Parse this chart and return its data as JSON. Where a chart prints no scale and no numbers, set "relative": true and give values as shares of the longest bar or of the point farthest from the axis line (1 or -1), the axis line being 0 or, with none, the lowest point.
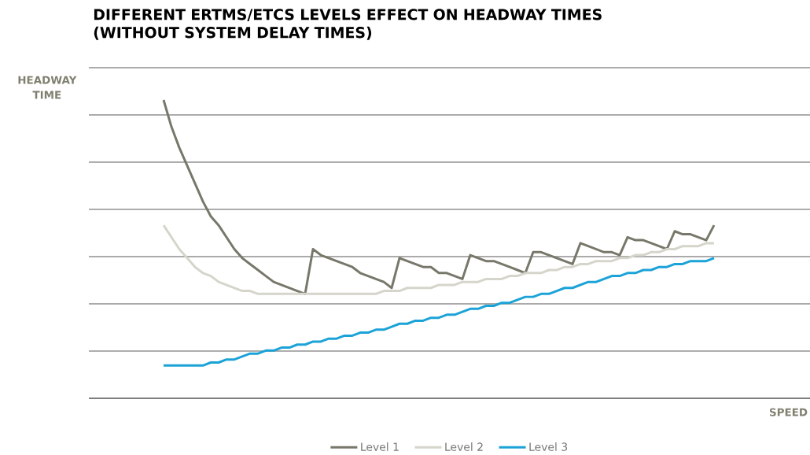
{
  "chart_data": {
    "type": "line",
    "title": "DIFFERENT ERTMS/ETCS LEVELS EFFECT ON HEADWAY TIMES (WITHOUT SYSTEM DELAY TIMES)",
    "xlabel": "SPEED",
    "annotations": [
      "HEADWAY TIME"
    ],
    "relative": true,
    "grid": "y",
    "legend": "bottom",
    "marker": "none",
    "categories": [
      null,
      null,
      null,
      null,
      null,
      null,
      null,
      null,
      null,
      null,
      null,
      null,
      null,
      null,
      null,
      null,
      null,
      null,
      null,
      null,
      null,
      null,
      null,
      null,
      null,
      null,
      null,
      null,
      null,
      null,
      null,
      null,
      null,
      null,
      null,
      null,
      null,
      null,
      null,
      null,
      null,
      null,
      null,
      null,
      null,
      null,
      null,
      null,
      null,
      null,
      null,
      null,
      null,
      null,
      null,
      null,
      null,
      null,
      null,
      null,
      null,
      null,
      null,
      null,
      null,
      null,
      null,
      null,
      null,
      null,
      null
    ],
    "series": [
      {
        "name": "Level 1",
        "color": "#77776a",
        "values": [
          1.0,
          0.91,
          0.84,
          0.78,
          0.72,
          0.66,
          0.61,
          0.58,
          0.54,
          0.5,
          0.47,
          0.45,
          0.43,
          0.41,
          0.39,
          0.38,
          0.37,
          0.36,
          0.35,
          0.5,
          0.48,
          0.47,
          0.46,
          0.45,
          0.44,
          0.42,
          0.41,
          0.4,
          0.39,
          0.37,
          0.47,
          0.46,
          0.45,
          0.44,
          0.44,
          0.42,
          0.42,
          0.41,
          0.4,
          0.48,
          0.47,
          0.46,
          0.46,
          0.45,
          0.44,
          0.43,
          0.42,
          0.49,
          0.49,
          0.48,
          0.47,
          0.46,
          0.45,
          0.52,
          0.51,
          0.5,
          0.49,
          0.49,
          0.48,
          0.54,
          0.53,
          0.53,
          0.52,
          0.51,
          0.5,
          0.56,
          0.55,
          0.55,
          0.54,
          0.53,
          0.58
        ]
      },
      {
        "name": "Level 2",
        "color": "#d5d5cb",
        "values": [
          0.58,
          0.54,
          0.5,
          0.47,
          0.44,
          0.42,
          0.41,
          0.39,
          0.38,
          0.37,
          0.36,
          0.36,
          0.35,
          0.35,
          0.35,
          0.35,
          0.35,
          0.35,
          0.35,
          0.35,
          0.35,
          0.35,
          0.35,
          0.35,
          0.35,
          0.35,
          0.35,
          0.35,
          0.36,
          0.36,
          0.36,
          0.37,
          0.37,
          0.37,
          0.37,
          0.38,
          0.38,
          0.38,
          0.39,
          0.39,
          0.39,
          0.4,
          0.4,
          0.4,
          0.41,
          0.41,
          0.42,
          0.42,
          0.42,
          0.43,
          0.43,
          0.44,
          0.44,
          0.45,
          0.45,
          0.46,
          0.46,
          0.46,
          0.47,
          0.47,
          0.48,
          0.48,
          0.49,
          0.49,
          0.5,
          0.5,
          0.51,
          0.51,
          0.51,
          0.52,
          0.52
        ]
      },
      {
        "name": "Level 3",
        "color": "#1ba3d8",
        "values": [
          0.11,
          0.11,
          0.11,
          0.11,
          0.11,
          0.11,
          0.12,
          0.12,
          0.13,
          0.13,
          0.14,
          0.15,
          0.15,
          0.16,
          0.16,
          0.17,
          0.17,
          0.18,
          0.18,
          0.19,
          0.19,
          0.2,
          0.2,
          0.21,
          0.21,
          0.22,
          0.22,
          0.23,
          0.23,
          0.24,
          0.25,
          0.25,
          0.26,
          0.26,
          0.27,
          0.27,
          0.28,
          0.28,
          0.29,
          0.3,
          0.3,
          0.31,
          0.31,
          0.32,
          0.32,
          0.33,
          0.34,
          0.34,
          0.35,
          0.35,
          0.36,
          0.37,
          0.37,
          0.38,
          0.39,
          0.39,
          0.4,
          0.41,
          0.41,
          0.42,
          0.42,
          0.43,
          0.43,
          0.44,
          0.44,
          0.45,
          0.45,
          0.46,
          0.46,
          0.46,
          0.47
        ]
      }
    ]
  }
}
